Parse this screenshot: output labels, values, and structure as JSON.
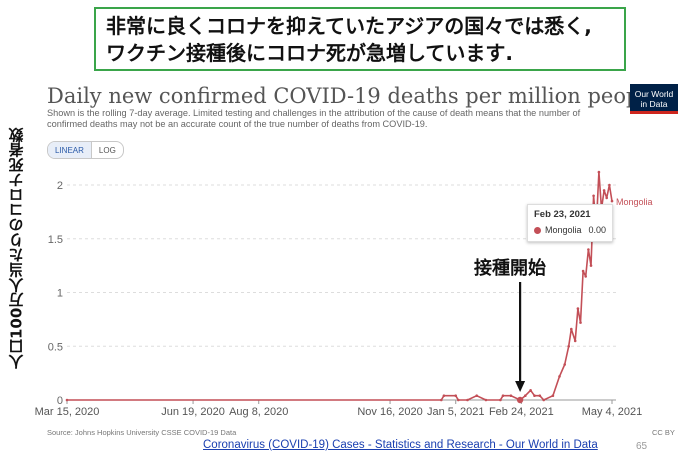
{
  "banner": {
    "line1": "非常に良くコロナを抑えていたアジアの国々では悉く,",
    "line2": "ワクチン接種後にコロナ死が急増しています."
  },
  "side_label": "人口100万人当たりのコロナ死者数",
  "logo": {
    "line1": "Our World",
    "line2": "in Data"
  },
  "scale_toggle": {
    "linear": "LINEAR",
    "log": "LOG",
    "selected": "LINEAR"
  },
  "tooltip": {
    "date": "Feb 23, 2021",
    "series": "Mongolia",
    "value": "0.00"
  },
  "annotation": "接種開始",
  "source": "Source: Johns Hopkins University CSSE COVID-19 Data",
  "license": "CC BY",
  "bottom_link": "Coronavirus (COVID-19) Cases - Statistics and Research - Our World in Data",
  "page_number": "65",
  "colors": {
    "series": "#c34f57",
    "banner_border": "#3aa54a",
    "link": "#1a3fb0",
    "logo_bg": "#002147"
  },
  "chart_data": {
    "type": "line",
    "title": "Daily new confirmed COVID-19 deaths per million people",
    "subtitle": "Shown is the rolling 7-day average. Limited testing and challenges in the attribution of the cause of death means that the number of confirmed deaths may not be an accurate count of the true number of deaths from COVID-19.",
    "xlabel": "",
    "ylabel": "",
    "x_ticks": [
      "Mar 15, 2020",
      "Jun 19, 2020",
      "Aug 8, 2020",
      "Nov 16, 2020",
      "Jan 5, 2021",
      "Feb 24, 2021",
      "May 4, 2021"
    ],
    "y_ticks": [
      "0",
      "0.5",
      "1",
      "1.5",
      "2"
    ],
    "ylim": [
      0,
      2.1
    ],
    "grid": true,
    "series": [
      {
        "name": "Mongolia",
        "x": [
          "2020-03-15",
          "2020-12-25",
          "2020-12-27",
          "2021-01-05",
          "2021-01-07",
          "2021-01-14",
          "2021-01-21",
          "2021-01-28",
          "2021-02-08",
          "2021-02-10",
          "2021-02-16",
          "2021-02-23",
          "2021-02-27",
          "2021-03-03",
          "2021-03-06",
          "2021-03-10",
          "2021-03-13",
          "2021-03-20",
          "2021-03-25",
          "2021-03-29",
          "2021-04-01",
          "2021-04-03",
          "2021-04-06",
          "2021-04-08",
          "2021-04-10",
          "2021-04-12",
          "2021-04-14",
          "2021-04-16",
          "2021-04-18",
          "2021-04-20",
          "2021-04-22",
          "2021-04-24",
          "2021-04-26",
          "2021-04-28",
          "2021-04-30",
          "2021-05-02",
          "2021-05-04"
        ],
        "y": [
          0,
          0,
          0.04,
          0.04,
          0,
          0,
          0.04,
          0,
          0,
          0.04,
          0.04,
          0,
          0.04,
          0.09,
          0.04,
          0.04,
          0,
          0.04,
          0.22,
          0.33,
          0.5,
          0.66,
          0.55,
          0.85,
          0.72,
          1.2,
          1.15,
          1.4,
          1.25,
          1.9,
          1.6,
          2.12,
          1.78,
          1.95,
          1.88,
          2.0,
          1.85
        ]
      }
    ]
  }
}
